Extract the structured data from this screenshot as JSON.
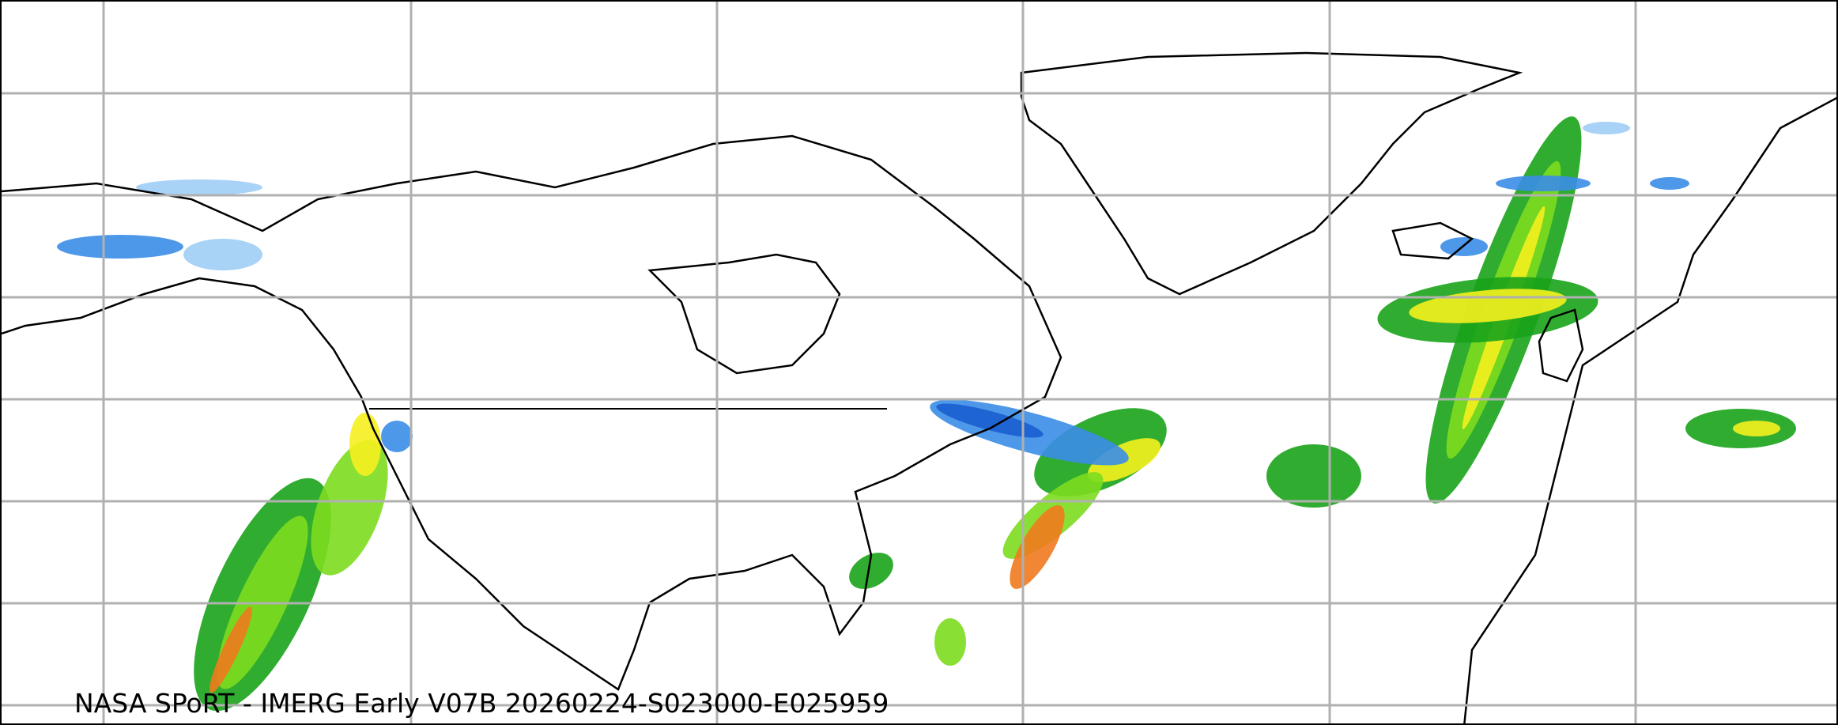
{
  "caption": "NASA SPoRT - IMERG Early V07B 20260224-S023000-E025959",
  "colors": {
    "grid": "#b0b0b0",
    "coastline": "#000000",
    "light_snow": "#9fcdf5",
    "snow": "#3b8de8",
    "heavy_snow": "#1a5fd0",
    "light_rain": "#19a319",
    "rain": "#7ddc1f",
    "moderate_rain": "#f5f01e",
    "heavy_rain": "#f07a1e",
    "very_heavy_rain": "#e3141e",
    "extreme": "#e040c0"
  },
  "features": [
    "graticule",
    "coastlines",
    "country-borders",
    "us-state-borders",
    "precipitation-rate-overlay"
  ]
}
